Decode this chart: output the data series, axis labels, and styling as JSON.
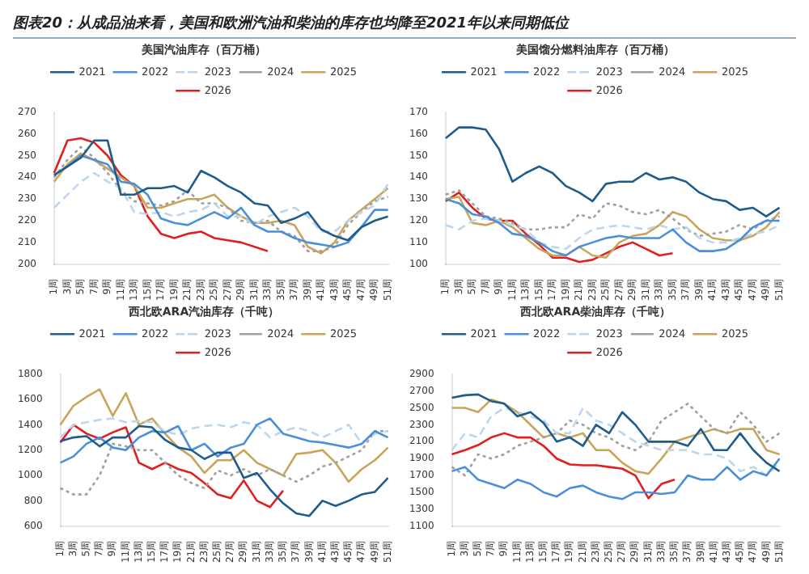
{
  "chart_data": [
    {
      "type": "line",
      "title": "美国汽油库存（百万桶）",
      "annotations": [
        "图表20：从成品油来看，美国和欧洲汽油和柴油的库存也均降至2021年以来同期低位"
      ],
      "categories": [
        "1周",
        "3周",
        "5周",
        "7周",
        "9周",
        "11周",
        "13周",
        "15周",
        "17周",
        "19周",
        "21周",
        "23周",
        "25周",
        "27周",
        "29周",
        "31周",
        "33周",
        "35周",
        "37周",
        "39周",
        "41周",
        "43周",
        "45周",
        "47周",
        "49周",
        "51周"
      ],
      "ylim": [
        200,
        270
      ],
      "yticks": [
        200,
        210,
        220,
        230,
        240,
        250,
        260,
        270
      ],
      "grid": false,
      "legend": "top",
      "marker": "none",
      "series": [
        {
          "name": "2021",
          "color": "#1f5c8b",
          "line_style": "solid",
          "values": [
            241,
            245,
            249,
            257,
            257,
            232,
            232,
            235,
            235,
            236,
            233,
            243,
            240,
            236,
            233,
            228,
            227,
            219,
            221,
            224,
            216,
            213,
            211,
            217,
            220,
            222
          ]
        },
        {
          "name": "2022",
          "color": "#4a90d9",
          "line_style": "solid",
          "values": [
            241,
            245,
            250,
            248,
            246,
            238,
            237,
            232,
            221,
            219,
            218,
            221,
            224,
            221,
            226,
            218,
            215,
            215,
            212,
            210,
            209,
            208,
            210,
            217,
            225,
            225
          ]
        },
        {
          "name": "2023",
          "color": "#bcd6ee",
          "line_style": "dashed",
          "values": [
            226,
            232,
            238,
            242,
            238,
            235,
            224,
            223,
            224,
            222,
            224,
            225,
            228,
            222,
            222,
            218,
            222,
            224,
            226,
            222,
            215,
            215,
            220,
            224,
            227,
            237
          ]
        },
        {
          "name": "2024",
          "color": "#a0a0a0",
          "line_style": "dotted",
          "values": [
            240,
            248,
            254,
            249,
            242,
            234,
            229,
            228,
            227,
            229,
            234,
            228,
            228,
            226,
            220,
            219,
            220,
            215,
            213,
            206,
            206,
            208,
            218,
            224,
            229,
            231
          ]
        },
        {
          "name": "2025",
          "color": "#c9a55a",
          "line_style": "solid",
          "values": [
            238,
            246,
            251,
            248,
            244,
            240,
            236,
            226,
            226,
            228,
            230,
            230,
            232,
            226,
            222,
            219,
            219,
            220,
            218,
            208,
            205,
            210,
            220,
            225,
            230,
            235
          ]
        },
        {
          "name": "2026",
          "color": "#e02020",
          "line_style": "solid",
          "values": [
            242,
            257,
            258,
            256,
            250,
            241,
            236,
            222,
            214,
            212,
            214,
            215,
            212,
            211,
            210,
            208,
            206,
            null,
            null,
            null,
            null,
            null,
            null,
            null,
            null,
            null
          ]
        }
      ]
    },
    {
      "type": "line",
      "title": "美国馏分燃料油库存（百万桶）",
      "categories": [
        "1周",
        "3周",
        "5周",
        "7周",
        "9周",
        "11周",
        "13周",
        "15周",
        "17周",
        "19周",
        "21周",
        "23周",
        "25周",
        "27周",
        "29周",
        "31周",
        "33周",
        "35周",
        "37周",
        "39周",
        "41周",
        "43周",
        "45周",
        "47周",
        "49周",
        "51周"
      ],
      "ylim": [
        100,
        170
      ],
      "yticks": [
        100,
        110,
        120,
        130,
        140,
        150,
        160,
        170
      ],
      "grid": false,
      "legend": "top",
      "marker": "none",
      "series": [
        {
          "name": "2021",
          "color": "#1f5c8b",
          "line_style": "solid",
          "values": [
            158,
            163,
            163,
            162,
            153,
            138,
            142,
            145,
            142,
            136,
            133,
            129,
            137,
            138,
            138,
            142,
            139,
            140,
            138,
            133,
            130,
            129,
            125,
            126,
            122,
            126
          ]
        },
        {
          "name": "2022",
          "color": "#4a90d9",
          "line_style": "solid",
          "values": [
            130,
            128,
            123,
            122,
            119,
            114,
            113,
            110,
            106,
            104,
            108,
            110,
            112,
            113,
            112,
            112,
            112,
            116,
            110,
            106,
            106,
            107,
            111,
            117,
            120,
            120
          ]
        },
        {
          "name": "2023",
          "color": "#bcd6ee",
          "line_style": "dashed",
          "values": [
            118,
            116,
            120,
            121,
            120,
            118,
            116,
            110,
            108,
            107,
            112,
            116,
            117,
            118,
            117,
            116,
            118,
            116,
            117,
            112,
            110,
            110,
            112,
            114,
            115,
            118
          ]
        },
        {
          "name": "2024",
          "color": "#a0a0a0",
          "line_style": "dotted",
          "values": [
            132,
            134,
            128,
            122,
            121,
            119,
            116,
            116,
            117,
            117,
            123,
            121,
            128,
            127,
            124,
            123,
            125,
            121,
            116,
            113,
            114,
            115,
            118,
            116,
            120,
            122
          ]
        },
        {
          "name": "2025",
          "color": "#c9a55a",
          "line_style": "solid",
          "values": [
            130,
            131,
            119,
            118,
            120,
            117,
            112,
            107,
            104,
            104,
            108,
            104,
            103,
            110,
            113,
            114,
            118,
            124,
            122,
            116,
            112,
            111,
            111,
            113,
            117,
            124
          ]
        },
        {
          "name": "2026",
          "color": "#e02020",
          "line_style": "solid",
          "values": [
            129,
            133,
            126,
            121,
            120,
            120,
            114,
            109,
            103,
            103,
            101,
            102,
            105,
            108,
            110,
            107,
            104,
            105,
            null,
            null,
            null,
            null,
            null,
            null,
            null,
            null
          ]
        }
      ]
    },
    {
      "type": "line",
      "title": "西北欧ARA汽油库存（千吨）",
      "categories": [
        "1周",
        "3周",
        "5周",
        "7周",
        "9周",
        "11周",
        "13周",
        "15周",
        "17周",
        "19周",
        "21周",
        "23周",
        "25周",
        "27周",
        "29周",
        "31周",
        "33周",
        "35周",
        "37周",
        "39周",
        "41周",
        "43周",
        "45周",
        "47周",
        "49周",
        "51周"
      ],
      "ylim": [
        600,
        1800
      ],
      "yticks": [
        600,
        800,
        1000,
        1200,
        1400,
        1600,
        1800
      ],
      "grid": false,
      "legend": "top",
      "marker": "none",
      "series": [
        {
          "name": "2021",
          "color": "#1f5c8b",
          "line_style": "solid",
          "values": [
            1270,
            1300,
            1310,
            1230,
            1300,
            1300,
            1390,
            1380,
            1280,
            1220,
            1200,
            1130,
            1180,
            1180,
            980,
            1020,
            890,
            780,
            700,
            680,
            800,
            760,
            800,
            850,
            870,
            980
          ]
        },
        {
          "name": "2022",
          "color": "#4a90d9",
          "line_style": "solid",
          "values": [
            1100,
            1150,
            1250,
            1300,
            1220,
            1200,
            1300,
            1350,
            1340,
            1390,
            1200,
            1250,
            1150,
            1220,
            1250,
            1400,
            1450,
            1330,
            1300,
            1270,
            1260,
            1240,
            1220,
            1250,
            1350,
            1300
          ]
        },
        {
          "name": "2023",
          "color": "#bcd6ee",
          "line_style": "dashed",
          "values": [
            1300,
            1400,
            1420,
            1440,
            1450,
            1420,
            1430,
            1420,
            1350,
            1320,
            1370,
            1390,
            1400,
            1380,
            1420,
            1400,
            1300,
            1350,
            1380,
            1350,
            1300,
            1350,
            1400,
            1250,
            1330,
            1350
          ]
        },
        {
          "name": "2024",
          "color": "#a0a0a0",
          "line_style": "dotted",
          "values": [
            900,
            850,
            850,
            1000,
            1250,
            1230,
            1200,
            1200,
            1100,
            1000,
            940,
            900,
            1040,
            1000,
            1050,
            1000,
            1050,
            1000,
            950,
            1000,
            1070,
            1100,
            1150,
            1200,
            1350,
            1350
          ]
        },
        {
          "name": "2025",
          "color": "#c9a55a",
          "line_style": "solid",
          "values": [
            1400,
            1550,
            1620,
            1680,
            1470,
            1650,
            1400,
            1450,
            1330,
            1220,
            1150,
            1020,
            1120,
            1120,
            1200,
            1100,
            1050,
            1000,
            1170,
            1180,
            1200,
            1100,
            950,
            1050,
            1120,
            1220
          ]
        },
        {
          "name": "2026",
          "color": "#e02020",
          "line_style": "solid",
          "values": [
            1260,
            1400,
            1330,
            1290,
            1340,
            1380,
            1100,
            1050,
            1100,
            1050,
            1020,
            940,
            850,
            820,
            960,
            800,
            750,
            880,
            null,
            null,
            null,
            null,
            null,
            null,
            null,
            null
          ]
        }
      ]
    },
    {
      "type": "line",
      "title": "西北欧ARA柴油库存（千吨）",
      "categories": [
        "1周",
        "3周",
        "5周",
        "7周",
        "9周",
        "11周",
        "13周",
        "15周",
        "17周",
        "19周",
        "21周",
        "23周",
        "25周",
        "27周",
        "29周",
        "31周",
        "33周",
        "35周",
        "37周",
        "39周",
        "41周",
        "43周",
        "45周",
        "47周",
        "49周",
        "51周"
      ],
      "ylim": [
        1100,
        2900
      ],
      "yticks": [
        1100,
        1300,
        1500,
        1700,
        1900,
        2100,
        2300,
        2500,
        2700,
        2900
      ],
      "grid": false,
      "legend": "top",
      "marker": "none",
      "series": [
        {
          "name": "2021",
          "color": "#1f5c8b",
          "line_style": "solid",
          "values": [
            2620,
            2650,
            2660,
            2580,
            2550,
            2400,
            2450,
            2320,
            2100,
            2150,
            2050,
            2300,
            2200,
            2450,
            2300,
            2100,
            2100,
            2100,
            2050,
            2250,
            2000,
            2000,
            2200,
            2000,
            1850,
            1750
          ]
        },
        {
          "name": "2022",
          "color": "#4a90d9",
          "line_style": "solid",
          "values": [
            1750,
            1800,
            1650,
            1600,
            1550,
            1650,
            1600,
            1500,
            1450,
            1550,
            1580,
            1500,
            1450,
            1420,
            1500,
            1500,
            1480,
            1500,
            1700,
            1650,
            1650,
            1800,
            1650,
            1750,
            1700,
            1900
          ]
        },
        {
          "name": "2023",
          "color": "#bcd6ee",
          "line_style": "dashed",
          "values": [
            2000,
            2200,
            2150,
            2400,
            2500,
            2450,
            2400,
            2350,
            2200,
            2200,
            2500,
            2350,
            2300,
            2200,
            2100,
            2050,
            2000,
            2000,
            2000,
            1950,
            1950,
            1900,
            1750,
            1800,
            1700,
            1850
          ]
        },
        {
          "name": "2024",
          "color": "#a0a0a0",
          "line_style": "dotted",
          "values": [
            1800,
            1700,
            1950,
            1900,
            1950,
            2050,
            2100,
            2150,
            2200,
            2350,
            2300,
            2200,
            2150,
            2050,
            2000,
            2100,
            2350,
            2450,
            2550,
            2400,
            2250,
            2200,
            2450,
            2300,
            2100,
            2200
          ]
        },
        {
          "name": "2025",
          "color": "#c9a55a",
          "line_style": "solid",
          "values": [
            2500,
            2500,
            2450,
            2600,
            2550,
            2450,
            2300,
            2150,
            2200,
            2150,
            2200,
            2000,
            2000,
            1850,
            1750,
            1720,
            1900,
            2100,
            2150,
            2200,
            2250,
            2200,
            2250,
            2250,
            2000,
            1950
          ]
        },
        {
          "name": "2026",
          "color": "#e02020",
          "line_style": "solid",
          "values": [
            1950,
            2000,
            2060,
            2150,
            2200,
            2150,
            2150,
            2050,
            1900,
            1830,
            1820,
            1820,
            1800,
            1780,
            1700,
            1430,
            1600,
            1650,
            null,
            null,
            null,
            null,
            null,
            null,
            null,
            null
          ]
        }
      ]
    }
  ]
}
